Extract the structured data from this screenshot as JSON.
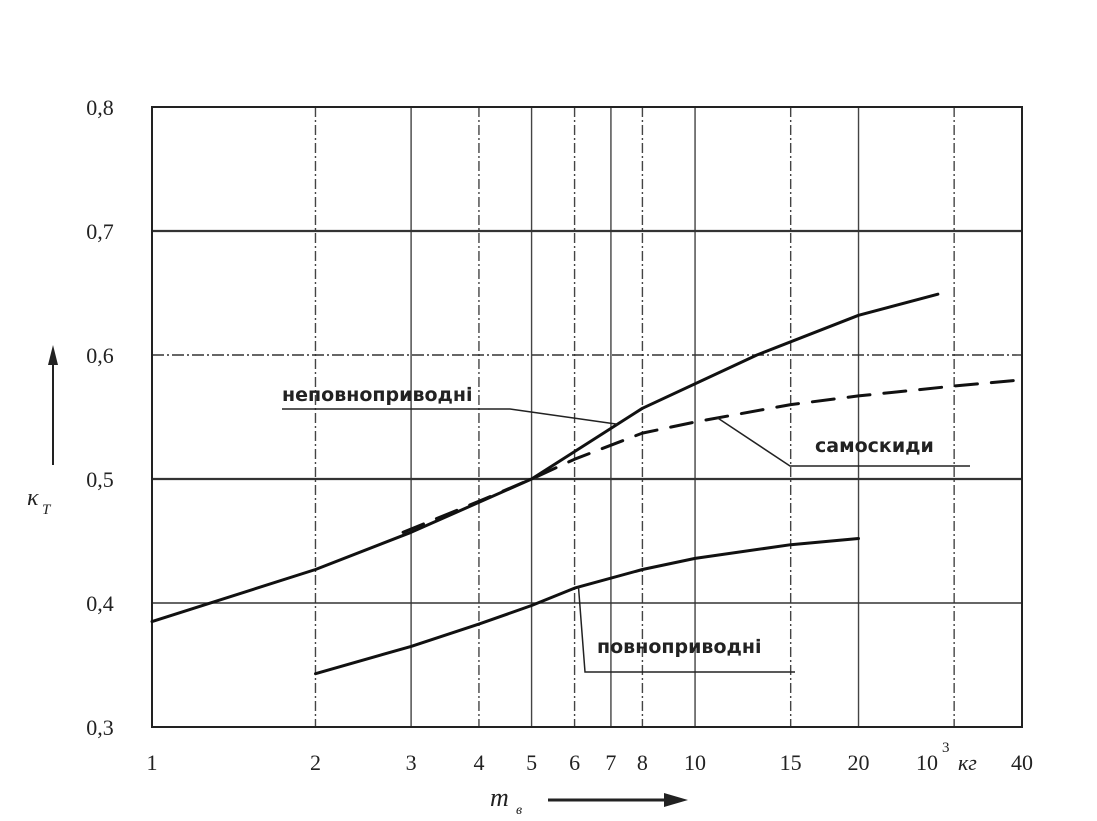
{
  "chart_data": {
    "type": "line",
    "x_scale": "log",
    "xlim": [
      1,
      40
    ],
    "ylim": [
      0.3,
      0.8
    ],
    "grid": true,
    "x_ticks": [
      1,
      2,
      3,
      4,
      5,
      6,
      7,
      8,
      10,
      15,
      20,
      30,
      40
    ],
    "x_tick_labels": [
      "1",
      "2",
      "3",
      "4",
      "5",
      "6",
      "7",
      "8",
      "10",
      "15",
      "20",
      "",
      "40"
    ],
    "y_ticks": [
      0.3,
      0.4,
      0.5,
      0.6,
      0.7,
      0.8
    ],
    "y_tick_labels": [
      "0,3",
      "0,4",
      "0,5",
      "0,6",
      "0,7",
      "0,8"
    ],
    "xlabel": "m",
    "xlabel_sub": "в",
    "x_unit_base": "10",
    "x_unit_exp": "3",
    "x_unit": "кг",
    "ylabel": "κ",
    "ylabel_sub": "Т",
    "series": [
      {
        "name": "неповноприводні",
        "style": "solid",
        "x": [
          1,
          2,
          3,
          5,
          8,
          13,
          20,
          28
        ],
        "y": [
          0.385,
          0.427,
          0.457,
          0.5,
          0.557,
          0.6,
          0.632,
          0.649
        ]
      },
      {
        "name": "повноприводні",
        "style": "solid",
        "x": [
          2,
          3,
          4,
          5,
          6,
          8,
          10,
          15,
          20
        ],
        "y": [
          0.343,
          0.365,
          0.383,
          0.398,
          0.412,
          0.427,
          0.436,
          0.447,
          0.452
        ]
      },
      {
        "name": "самоскиди",
        "style": "dashed",
        "x": [
          2.9,
          4,
          5,
          6,
          8,
          10,
          15,
          20,
          30,
          40
        ],
        "y": [
          0.457,
          0.482,
          0.5,
          0.516,
          0.537,
          0.546,
          0.56,
          0.567,
          0.575,
          0.58
        ]
      }
    ],
    "annotations": [
      {
        "text": "неповноприводні",
        "series": 0,
        "at_x": 7.2
      },
      {
        "text": "самоскиди",
        "series": 2,
        "at_x": 11
      },
      {
        "text": "повноприводні",
        "series": 1,
        "at_x": 6.1
      }
    ]
  }
}
